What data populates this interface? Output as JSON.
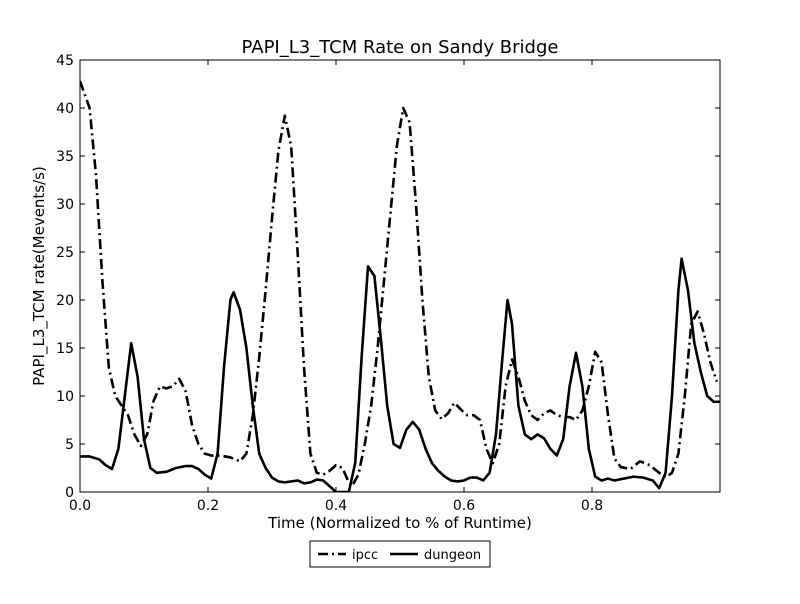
{
  "chart_data": {
    "type": "line",
    "title": "PAPI_L3_TCM Rate on Sandy Bridge",
    "xlabel": "Time (Normalized to % of Runtime)",
    "ylabel": "PAPI_L3_TCM rate(Mevents/s)",
    "xlim": [
      0.0,
      1.0
    ],
    "ylim": [
      0,
      45
    ],
    "xticks": [
      0.0,
      0.2,
      0.4,
      0.6,
      0.8
    ],
    "xtick_labels": [
      "0.0",
      "0.2",
      "0.4",
      "0.6",
      "0.8"
    ],
    "yticks": [
      0,
      5,
      10,
      15,
      20,
      25,
      30,
      35,
      40,
      45
    ],
    "ytick_labels": [
      "0",
      "5",
      "10",
      "15",
      "20",
      "25",
      "30",
      "35",
      "40",
      "45"
    ],
    "grid": false,
    "legend_position": "bottom-center-outside",
    "series": [
      {
        "name": "ipcc",
        "line_style": "dash-dot",
        "color": "#000000",
        "points": [
          [
            0.0,
            42.8
          ],
          [
            0.015,
            40.0
          ],
          [
            0.025,
            33.0
          ],
          [
            0.035,
            22.0
          ],
          [
            0.045,
            13.0
          ],
          [
            0.055,
            10.0
          ],
          [
            0.065,
            9.0
          ],
          [
            0.075,
            8.0
          ],
          [
            0.085,
            6.0
          ],
          [
            0.095,
            4.8
          ],
          [
            0.105,
            6.0
          ],
          [
            0.115,
            9.5
          ],
          [
            0.125,
            11.0
          ],
          [
            0.135,
            10.8
          ],
          [
            0.145,
            11.0
          ],
          [
            0.155,
            11.8
          ],
          [
            0.165,
            10.5
          ],
          [
            0.175,
            7.0
          ],
          [
            0.185,
            5.0
          ],
          [
            0.195,
            4.0
          ],
          [
            0.205,
            3.8
          ],
          [
            0.22,
            3.8
          ],
          [
            0.235,
            3.6
          ],
          [
            0.25,
            3.2
          ],
          [
            0.26,
            4.0
          ],
          [
            0.27,
            8.0
          ],
          [
            0.28,
            14.0
          ],
          [
            0.29,
            21.0
          ],
          [
            0.3,
            28.5
          ],
          [
            0.31,
            35.5
          ],
          [
            0.32,
            39.2
          ],
          [
            0.33,
            36.0
          ],
          [
            0.34,
            25.0
          ],
          [
            0.35,
            13.0
          ],
          [
            0.36,
            4.0
          ],
          [
            0.37,
            2.0
          ],
          [
            0.38,
            1.8
          ],
          [
            0.39,
            2.2
          ],
          [
            0.4,
            2.8
          ],
          [
            0.41,
            2.5
          ],
          [
            0.42,
            1.0
          ],
          [
            0.425,
            0.6
          ],
          [
            0.435,
            1.8
          ],
          [
            0.445,
            5.0
          ],
          [
            0.455,
            9.0
          ],
          [
            0.465,
            15.0
          ],
          [
            0.475,
            22.0
          ],
          [
            0.485,
            29.0
          ],
          [
            0.495,
            36.0
          ],
          [
            0.505,
            40.0
          ],
          [
            0.515,
            38.5
          ],
          [
            0.525,
            30.0
          ],
          [
            0.535,
            20.0
          ],
          [
            0.545,
            12.0
          ],
          [
            0.555,
            8.5
          ],
          [
            0.565,
            7.6
          ],
          [
            0.575,
            8.2
          ],
          [
            0.585,
            9.3
          ],
          [
            0.595,
            8.6
          ],
          [
            0.605,
            8.0
          ],
          [
            0.615,
            8.0
          ],
          [
            0.625,
            7.5
          ],
          [
            0.635,
            4.5
          ],
          [
            0.645,
            3.0
          ],
          [
            0.655,
            5.0
          ],
          [
            0.665,
            11.0
          ],
          [
            0.675,
            13.8
          ],
          [
            0.685,
            12.0
          ],
          [
            0.695,
            9.5
          ],
          [
            0.705,
            8.0
          ],
          [
            0.715,
            7.5
          ],
          [
            0.725,
            8.2
          ],
          [
            0.735,
            8.5
          ],
          [
            0.745,
            8.0
          ],
          [
            0.755,
            7.8
          ],
          [
            0.765,
            7.8
          ],
          [
            0.775,
            7.5
          ],
          [
            0.785,
            8.5
          ],
          [
            0.795,
            11.0
          ],
          [
            0.805,
            14.6
          ],
          [
            0.815,
            13.5
          ],
          [
            0.825,
            8.0
          ],
          [
            0.835,
            3.5
          ],
          [
            0.845,
            2.6
          ],
          [
            0.86,
            2.4
          ],
          [
            0.875,
            3.2
          ],
          [
            0.89,
            2.8
          ],
          [
            0.905,
            2.0
          ],
          [
            0.915,
            1.5
          ],
          [
            0.925,
            2.0
          ],
          [
            0.935,
            4.0
          ],
          [
            0.945,
            10.0
          ],
          [
            0.955,
            17.5
          ],
          [
            0.965,
            18.8
          ],
          [
            0.975,
            16.5
          ],
          [
            0.985,
            13.5
          ],
          [
            0.995,
            11.5
          ]
        ]
      },
      {
        "name": "dungeon",
        "line_style": "solid",
        "color": "#000000",
        "points": [
          [
            0.0,
            3.7
          ],
          [
            0.015,
            3.7
          ],
          [
            0.03,
            3.4
          ],
          [
            0.04,
            2.8
          ],
          [
            0.05,
            2.4
          ],
          [
            0.06,
            4.5
          ],
          [
            0.07,
            10.0
          ],
          [
            0.08,
            15.5
          ],
          [
            0.09,
            12.0
          ],
          [
            0.1,
            5.5
          ],
          [
            0.11,
            2.5
          ],
          [
            0.12,
            2.0
          ],
          [
            0.135,
            2.1
          ],
          [
            0.15,
            2.5
          ],
          [
            0.165,
            2.7
          ],
          [
            0.175,
            2.7
          ],
          [
            0.185,
            2.4
          ],
          [
            0.195,
            1.8
          ],
          [
            0.205,
            1.4
          ],
          [
            0.215,
            4.0
          ],
          [
            0.225,
            13.0
          ],
          [
            0.235,
            20.0
          ],
          [
            0.24,
            20.8
          ],
          [
            0.25,
            19.0
          ],
          [
            0.26,
            15.0
          ],
          [
            0.27,
            9.0
          ],
          [
            0.28,
            4.0
          ],
          [
            0.29,
            2.5
          ],
          [
            0.3,
            1.5
          ],
          [
            0.31,
            1.1
          ],
          [
            0.32,
            1.0
          ],
          [
            0.33,
            1.1
          ],
          [
            0.34,
            1.2
          ],
          [
            0.35,
            0.9
          ],
          [
            0.36,
            1.0
          ],
          [
            0.37,
            1.3
          ],
          [
            0.38,
            1.2
          ],
          [
            0.39,
            0.6
          ],
          [
            0.4,
            0.0
          ],
          [
            0.41,
            0.0
          ],
          [
            0.42,
            0.0
          ],
          [
            0.43,
            3.0
          ],
          [
            0.44,
            14.0
          ],
          [
            0.45,
            23.5
          ],
          [
            0.46,
            22.5
          ],
          [
            0.47,
            16.0
          ],
          [
            0.48,
            9.0
          ],
          [
            0.49,
            5.0
          ],
          [
            0.5,
            4.6
          ],
          [
            0.51,
            6.5
          ],
          [
            0.52,
            7.3
          ],
          [
            0.53,
            6.5
          ],
          [
            0.54,
            4.5
          ],
          [
            0.55,
            3.0
          ],
          [
            0.56,
            2.2
          ],
          [
            0.57,
            1.6
          ],
          [
            0.58,
            1.2
          ],
          [
            0.59,
            1.1
          ],
          [
            0.6,
            1.2
          ],
          [
            0.61,
            1.5
          ],
          [
            0.62,
            1.5
          ],
          [
            0.63,
            1.2
          ],
          [
            0.64,
            2.0
          ],
          [
            0.65,
            6.0
          ],
          [
            0.66,
            14.0
          ],
          [
            0.668,
            20.0
          ],
          [
            0.675,
            17.5
          ],
          [
            0.685,
            9.0
          ],
          [
            0.695,
            6.0
          ],
          [
            0.705,
            5.5
          ],
          [
            0.715,
            6.0
          ],
          [
            0.725,
            5.6
          ],
          [
            0.735,
            4.5
          ],
          [
            0.745,
            3.8
          ],
          [
            0.755,
            5.5
          ],
          [
            0.765,
            11.0
          ],
          [
            0.775,
            14.5
          ],
          [
            0.785,
            11.0
          ],
          [
            0.795,
            4.5
          ],
          [
            0.805,
            1.6
          ],
          [
            0.815,
            1.2
          ],
          [
            0.825,
            1.4
          ],
          [
            0.835,
            1.2
          ],
          [
            0.85,
            1.4
          ],
          [
            0.865,
            1.6
          ],
          [
            0.88,
            1.5
          ],
          [
            0.895,
            1.2
          ],
          [
            0.905,
            0.4
          ],
          [
            0.915,
            2.0
          ],
          [
            0.925,
            10.0
          ],
          [
            0.935,
            21.0
          ],
          [
            0.94,
            24.3
          ],
          [
            0.95,
            21.0
          ],
          [
            0.96,
            15.5
          ],
          [
            0.97,
            12.5
          ],
          [
            0.98,
            10.0
          ],
          [
            0.99,
            9.4
          ],
          [
            1.0,
            9.4
          ]
        ]
      }
    ]
  }
}
